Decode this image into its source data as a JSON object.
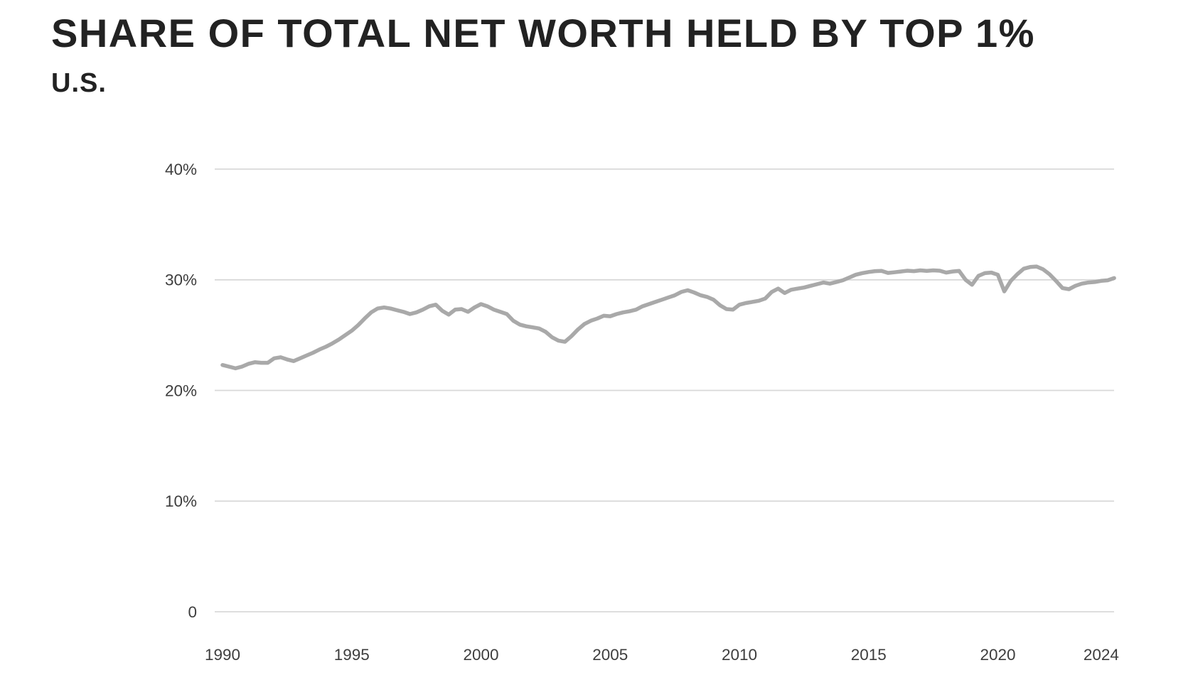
{
  "chart": {
    "title": "SHARE OF TOTAL NET WORTH HELD BY TOP 1%",
    "subtitle": "U.S."
  },
  "chart_data": {
    "type": "line",
    "title": "SHARE OF TOTAL NET WORTH HELD BY TOP 1%",
    "subtitle": "U.S.",
    "xlabel": "",
    "ylabel": "",
    "legend": "none",
    "grid": "horizontal-only",
    "background_color": "#ffffff",
    "line_color": "#a9a9a9",
    "grid_color": "#d9d9d9",
    "tick_text_color": "#3d3d3d",
    "title_text_color": "#222222",
    "xlim": [
      1989.7,
      2024.6
    ],
    "ylim": [
      0,
      42
    ],
    "x_tick_years": [
      1990,
      1995,
      2000,
      2005,
      2010,
      2015,
      2020,
      2024
    ],
    "x_tick_labels": [
      "1990",
      "1995",
      "2000",
      "2005",
      "2010",
      "2015",
      "2020",
      "2024"
    ],
    "y_tick_values": [
      0,
      10,
      20,
      30,
      40
    ],
    "y_tick_labels": [
      "0",
      "10%",
      "20%",
      "30%",
      "40%"
    ],
    "series": [
      {
        "name": "Share of total net worth held by top 1% (U.S.)",
        "unit": "%",
        "x_start": 1990,
        "x_step": 0.25,
        "values": [
          22.3,
          22.15,
          22.0,
          22.15,
          22.4,
          22.55,
          22.5,
          22.5,
          22.9,
          23.0,
          22.8,
          22.65,
          22.9,
          23.15,
          23.4,
          23.7,
          23.95,
          24.25,
          24.6,
          25.0,
          25.4,
          25.9,
          26.5,
          27.05,
          27.4,
          27.5,
          27.4,
          27.25,
          27.1,
          26.9,
          27.05,
          27.3,
          27.6,
          27.75,
          27.2,
          26.85,
          27.3,
          27.35,
          27.1,
          27.5,
          27.8,
          27.6,
          27.3,
          27.1,
          26.9,
          26.3,
          25.95,
          25.8,
          25.7,
          25.6,
          25.3,
          24.8,
          24.5,
          24.4,
          24.9,
          25.5,
          26.0,
          26.3,
          26.5,
          26.75,
          26.7,
          26.9,
          27.05,
          27.15,
          27.3,
          27.6,
          27.8,
          28.0,
          28.2,
          28.4,
          28.6,
          28.9,
          29.05,
          28.85,
          28.6,
          28.45,
          28.2,
          27.7,
          27.35,
          27.3,
          27.75,
          27.9,
          28.0,
          28.1,
          28.3,
          28.9,
          29.2,
          28.8,
          29.1,
          29.2,
          29.3,
          29.45,
          29.6,
          29.75,
          29.65,
          29.8,
          29.95,
          30.2,
          30.45,
          30.6,
          30.7,
          30.78,
          30.8,
          30.62,
          30.68,
          30.75,
          30.82,
          30.78,
          30.85,
          30.8,
          30.85,
          30.82,
          30.65,
          30.75,
          30.8,
          30.0,
          29.55,
          30.35,
          30.6,
          30.65,
          30.45,
          28.95,
          29.9,
          30.5,
          31.0,
          31.15,
          31.2,
          30.95,
          30.5,
          29.9,
          29.25,
          29.15,
          29.45,
          29.65,
          29.75,
          29.8,
          29.9,
          29.95,
          30.15
        ]
      }
    ]
  }
}
